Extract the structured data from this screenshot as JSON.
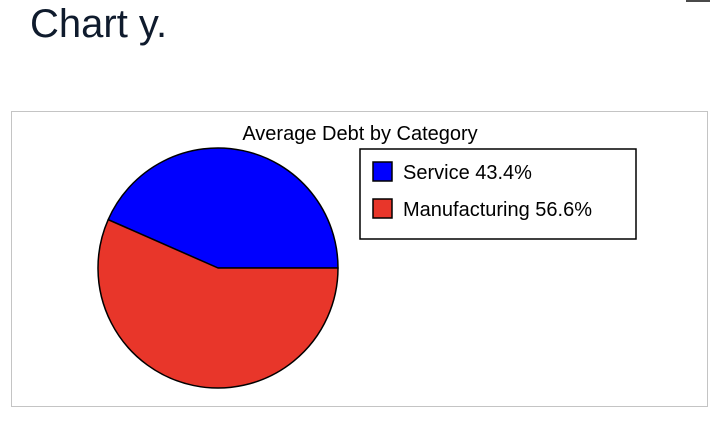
{
  "page": {
    "heading": "Chart y."
  },
  "chart_data": {
    "type": "pie",
    "title": "Average Debt by Category",
    "legend_position": "right",
    "slices": [
      {
        "label": "Service",
        "value": 43.4,
        "value_label": "43.4%",
        "legend_text": "Service 43.4%",
        "color": "#0000ff"
      },
      {
        "label": "Manufacturing",
        "value": 56.6,
        "value_label": "56.6%",
        "legend_text": "Manufacturing 56.6%",
        "color": "#e8362a"
      }
    ]
  }
}
